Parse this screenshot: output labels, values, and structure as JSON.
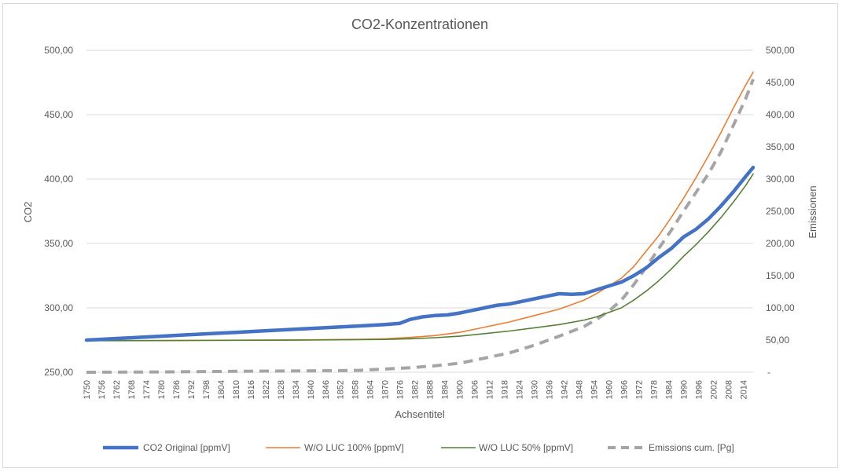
{
  "chart_data": {
    "type": "line",
    "title": "CO2-Konzentrationen",
    "xlabel": "Achsentitel",
    "ylabel": "CO2",
    "y2label": "Emissionen",
    "ylim": [
      250,
      500
    ],
    "y2lim": [
      0,
      500
    ],
    "y_ticks": [
      "250,00",
      "300,00",
      "350,00",
      "400,00",
      "450,00",
      "500,00"
    ],
    "y2_ticks": [
      "-",
      "50,00",
      "100,00",
      "150,00",
      "200,00",
      "250,00",
      "300,00",
      "350,00",
      "400,00",
      "450,00",
      "500,00"
    ],
    "x_ticks": [
      "1750",
      "1756",
      "1762",
      "1768",
      "1774",
      "1780",
      "1786",
      "1792",
      "1798",
      "1804",
      "1810",
      "1816",
      "1822",
      "1828",
      "1834",
      "1840",
      "1846",
      "1852",
      "1858",
      "1864",
      "1870",
      "1876",
      "1882",
      "1888",
      "1894",
      "1900",
      "1906",
      "1912",
      "1918",
      "1924",
      "1930",
      "1936",
      "1942",
      "1948",
      "1954",
      "1960",
      "1966",
      "1972",
      "1978",
      "1984",
      "1990",
      "1996",
      "2002",
      "2008",
      "2014"
    ],
    "x_range": [
      1750,
      2018
    ],
    "grid": true,
    "legend_position": "bottom",
    "series": [
      {
        "name": "CO2 Original [ppmV]",
        "color": "#4472C4",
        "axis": "left",
        "style": "solid-thick",
        "x": [
          1750,
          1760,
          1770,
          1780,
          1790,
          1800,
          1810,
          1820,
          1830,
          1840,
          1850,
          1860,
          1870,
          1876,
          1880,
          1885,
          1890,
          1895,
          1900,
          1905,
          1910,
          1915,
          1920,
          1925,
          1930,
          1935,
          1940,
          1945,
          1950,
          1955,
          1960,
          1965,
          1970,
          1975,
          1980,
          1985,
          1990,
          1995,
          2000,
          2005,
          2010,
          2015,
          2018
        ],
        "values": [
          275,
          276,
          277,
          278,
          279,
          280,
          281,
          282,
          283,
          284,
          285,
          286,
          287,
          288,
          291,
          293,
          294,
          294.5,
          296,
          298,
          300,
          302,
          303,
          305,
          307,
          309,
          311,
          310.5,
          311,
          314,
          317,
          320,
          325,
          331,
          339,
          346,
          355,
          361,
          369,
          379,
          390,
          402,
          409
        ]
      },
      {
        "name": "W/O LUC 100% [ppmV]",
        "color": "#ED7D31",
        "axis": "left",
        "style": "solid-thin",
        "x": [
          1750,
          1780,
          1810,
          1840,
          1860,
          1870,
          1880,
          1890,
          1900,
          1910,
          1920,
          1930,
          1940,
          1950,
          1955,
          1960,
          1965,
          1970,
          1975,
          1980,
          1985,
          1990,
          1995,
          2000,
          2005,
          2010,
          2015,
          2018
        ],
        "values": [
          274.5,
          274.7,
          274.9,
          275.2,
          275.6,
          276,
          277,
          278.5,
          281,
          285,
          289,
          294,
          299,
          306,
          311,
          317,
          323,
          332,
          344,
          356,
          370,
          385,
          401,
          418,
          436,
          455,
          473,
          483
        ]
      },
      {
        "name": "W/O LUC 50% [ppmV]",
        "color": "#548235",
        "axis": "left",
        "style": "solid-thin",
        "x": [
          1750,
          1780,
          1810,
          1840,
          1860,
          1870,
          1880,
          1890,
          1900,
          1910,
          1920,
          1930,
          1940,
          1950,
          1955,
          1960,
          1965,
          1970,
          1975,
          1980,
          1985,
          1990,
          1995,
          2000,
          2005,
          2010,
          2015,
          2018
        ],
        "values": [
          274.5,
          274.6,
          274.8,
          275,
          275.3,
          275.5,
          276,
          276.8,
          278,
          280,
          282,
          284.5,
          287,
          290.5,
          293,
          296.5,
          300,
          306,
          313,
          321,
          330,
          340,
          349,
          359,
          370,
          382,
          395,
          404
        ]
      },
      {
        "name": "Emissions cum. [Pg]",
        "color": "#A5A5A5",
        "axis": "right",
        "style": "dashed-thick",
        "x": [
          1750,
          1780,
          1810,
          1830,
          1850,
          1860,
          1870,
          1880,
          1890,
          1900,
          1910,
          1920,
          1930,
          1940,
          1950,
          1955,
          1960,
          1965,
          1970,
          1975,
          1980,
          1985,
          1990,
          1995,
          2000,
          2005,
          2010,
          2015,
          2018
        ],
        "values": [
          0,
          0.5,
          1.5,
          2,
          2.5,
          3,
          5,
          7,
          10,
          14,
          22,
          30,
          42,
          56,
          71,
          82,
          95,
          112,
          136,
          163,
          192,
          220,
          250,
          279,
          308,
          342,
          383,
          425,
          455
        ]
      }
    ]
  }
}
